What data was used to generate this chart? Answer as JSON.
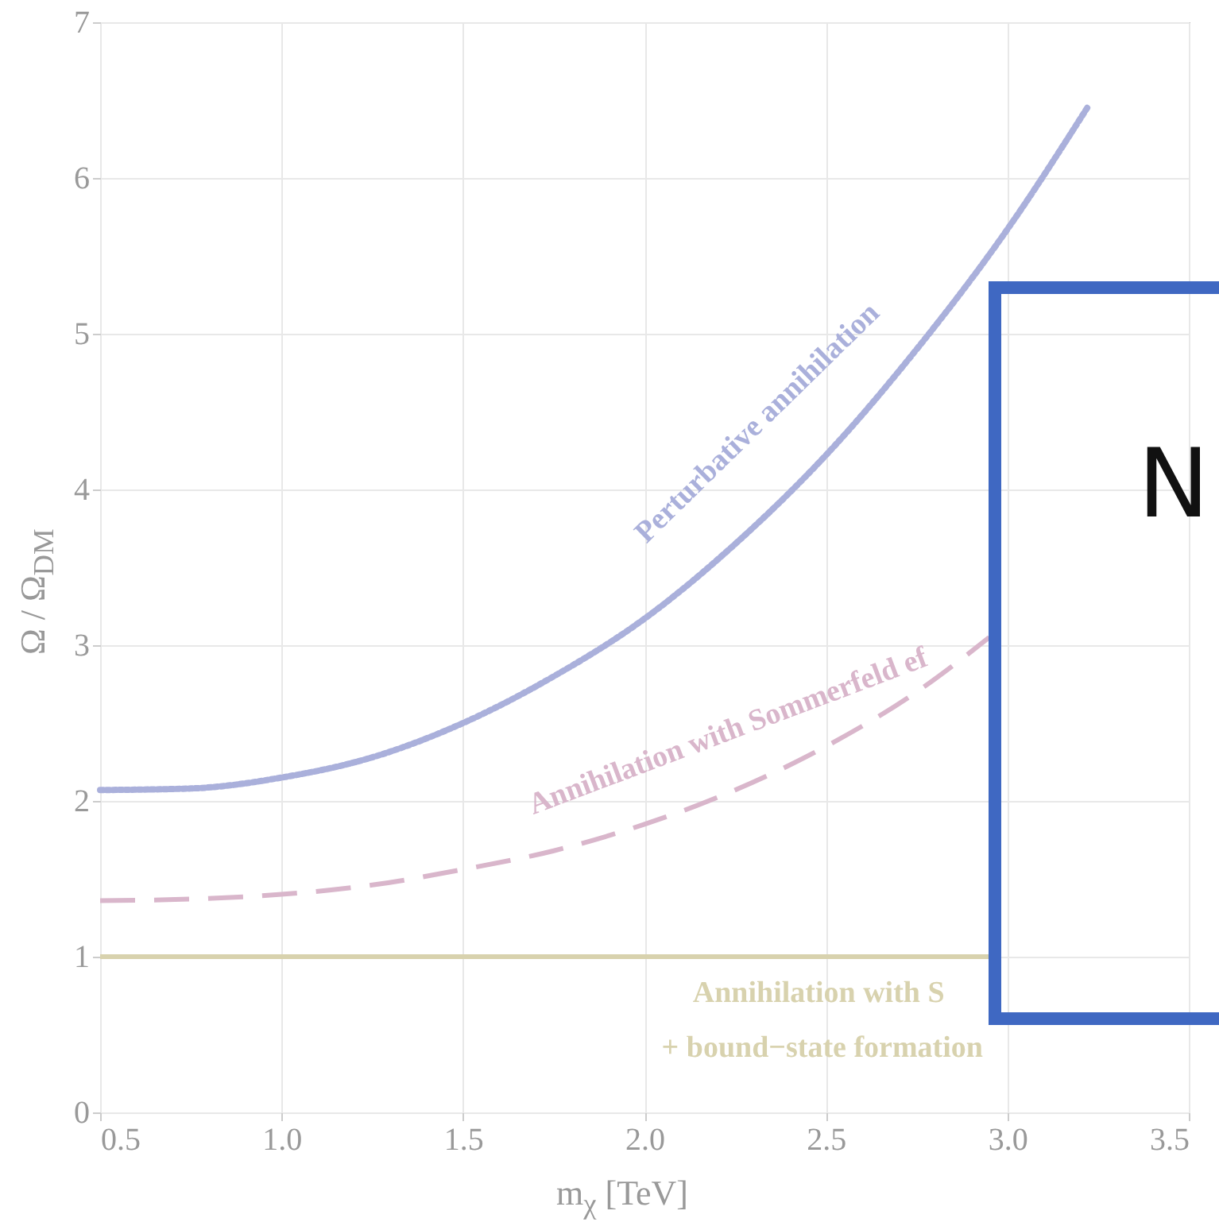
{
  "chart_data": {
    "type": "line",
    "xlabel": "m$_{χ}$ [TeV]",
    "ylabel": "Ω / Ω$_{DM}$",
    "xlim": [
      0.5,
      3.5
    ],
    "xticks": [
      {
        "value": 0.5,
        "label": "0.5"
      },
      {
        "value": 1,
        "label": "1.0"
      },
      {
        "value": 1.5,
        "label": "1.5"
      },
      {
        "value": 2,
        "label": "2.0"
      },
      {
        "value": 2.5,
        "label": "2.5"
      },
      {
        "value": 3,
        "label": "3.0"
      },
      {
        "value": 3.5,
        "label": "3.5"
      }
    ],
    "ylim": [
      0,
      7
    ],
    "yticks": [
      0,
      1,
      2,
      3,
      4,
      5,
      6,
      7
    ],
    "grid": true,
    "series": [
      {
        "color": "#aab0db",
        "line_style": "dotted",
        "x": [
          0.5,
          0.75,
          1.0,
          1.25,
          1.5,
          1.75,
          2.0,
          2.25,
          2.5,
          2.75,
          3.0,
          3.22
        ],
        "values": [
          2.07,
          2.08,
          2.15,
          2.28,
          2.5,
          2.8,
          3.17,
          3.65,
          4.22,
          4.9,
          5.67,
          6.45
        ]
      },
      {
        "color": "#d9b6cb",
        "line_style": "dashed",
        "x": [
          0.5,
          0.75,
          1.0,
          1.25,
          1.5,
          1.75,
          2.0,
          2.25,
          2.5,
          2.75,
          2.95
        ],
        "values": [
          1.36,
          1.37,
          1.4,
          1.46,
          1.56,
          1.68,
          1.85,
          2.07,
          2.35,
          2.7,
          3.05
        ]
      },
      {
        "color": "#d8d2ae",
        "line_style": "solid",
        "x": [
          0.5,
          2.95
        ],
        "values": [
          1,
          1
        ]
      }
    ],
    "annotations": [
      "Perturbative annihilation",
      "Annihilation with Sommerfeld ef",
      "Annihilation with S",
      "+ bound−state formation",
      "N"
    ]
  }
}
